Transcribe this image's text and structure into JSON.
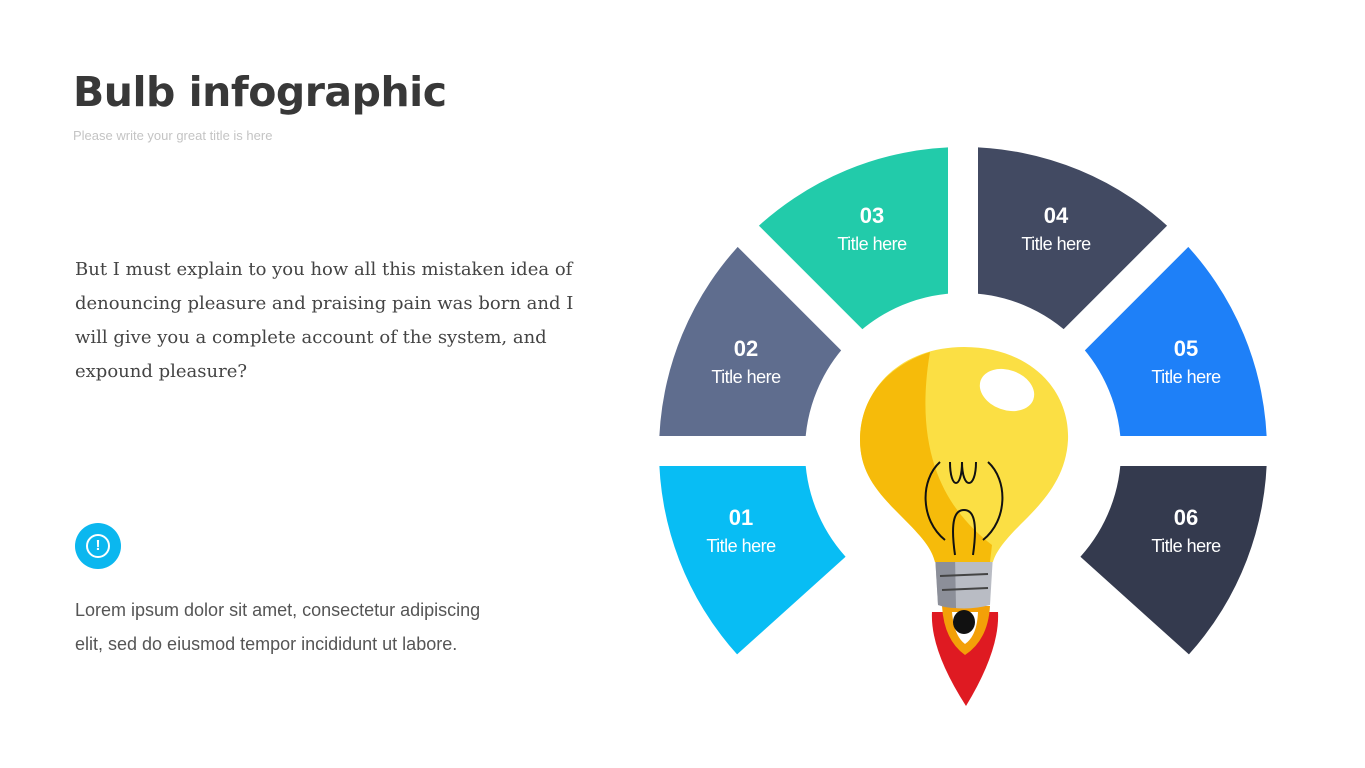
{
  "header": {
    "title": "Bulb infographic",
    "subtitle": "Please write your great title is here"
  },
  "body_text": "But I must explain to you how all this mistaken idea of denouncing pleasure and praising pain was born and I will give you a complete account of the system, and expound pleasure?",
  "note": {
    "icon": "exclamation-circle-icon",
    "icon_color": "#0bb7ef",
    "text": "Lorem ipsum dolor sit amet, consectetur adipiscing elit, sed do eiusmod tempor incididunt ut labore."
  },
  "diagram": {
    "center_icon": "lightbulb-rocket-icon",
    "segments": [
      {
        "number": "01",
        "title": "Title here",
        "color": "#08bdf4"
      },
      {
        "number": "02",
        "title": "Title here",
        "color": "#5f6d8e"
      },
      {
        "number": "03",
        "title": "Title here",
        "color": "#22cbaa"
      },
      {
        "number": "04",
        "title": "Title here",
        "color": "#424a62"
      },
      {
        "number": "05",
        "title": "Title here",
        "color": "#1e80f8"
      },
      {
        "number": "06",
        "title": "Title here",
        "color": "#343a4e"
      }
    ]
  }
}
